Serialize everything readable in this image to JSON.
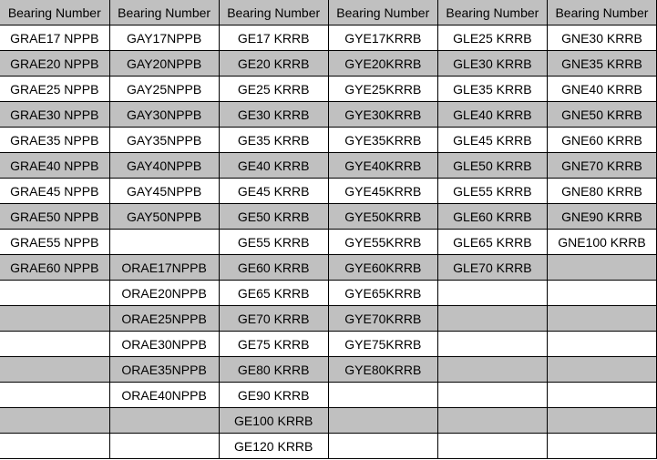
{
  "colors": {
    "header_bg": "#c0c0c0",
    "alt_row_bg": "#c0c0c0",
    "row_bg": "#ffffff",
    "border": "#000000"
  },
  "headers": [
    "Bearing Number",
    "Bearing Number",
    "Bearing Number",
    "Bearing Number",
    "Bearing Number",
    "Bearing Number"
  ],
  "rows": [
    [
      "GRAE17 NPPB",
      "GAY17NPPB",
      "GE17 KRRB",
      "GYE17KRRB",
      "GLE25 KRRB",
      "GNE30 KRRB"
    ],
    [
      "GRAE20 NPPB",
      "GAY20NPPB",
      "GE20 KRRB",
      "GYE20KRRB",
      "GLE30 KRRB",
      "GNE35 KRRB"
    ],
    [
      "GRAE25 NPPB",
      "GAY25NPPB",
      "GE25 KRRB",
      "GYE25KRRB",
      "GLE35 KRRB",
      "GNE40 KRRB"
    ],
    [
      "GRAE30 NPPB",
      "GAY30NPPB",
      "GE30 KRRB",
      "GYE30KRRB",
      "GLE40 KRRB",
      "GNE50 KRRB"
    ],
    [
      "GRAE35 NPPB",
      "GAY35NPPB",
      "GE35 KRRB",
      "GYE35KRRB",
      "GLE45 KRRB",
      "GNE60 KRRB"
    ],
    [
      "GRAE40 NPPB",
      "GAY40NPPB",
      "GE40 KRRB",
      "GYE40KRRB",
      "GLE50 KRRB",
      "GNE70 KRRB"
    ],
    [
      "GRAE45 NPPB",
      "GAY45NPPB",
      "GE45 KRRB",
      "GYE45KRRB",
      "GLE55 KRRB",
      "GNE80 KRRB"
    ],
    [
      "GRAE50 NPPB",
      "GAY50NPPB",
      "GE50 KRRB",
      "GYE50KRRB",
      "GLE60 KRRB",
      "GNE90 KRRB"
    ],
    [
      "GRAE55 NPPB",
      "",
      "GE55 KRRB",
      "GYE55KRRB",
      "GLE65 KRRB",
      "GNE100 KRRB"
    ],
    [
      "GRAE60 NPPB",
      "ORAE17NPPB",
      "GE60 KRRB",
      "GYE60KRRB",
      "GLE70 KRRB",
      ""
    ],
    [
      "",
      "ORAE20NPPB",
      "GE65 KRRB",
      "GYE65KRRB",
      "",
      ""
    ],
    [
      "",
      "ORAE25NPPB",
      "GE70 KRRB",
      "GYE70KRRB",
      "",
      ""
    ],
    [
      "",
      "ORAE30NPPB",
      "GE75 KRRB",
      "GYE75KRRB",
      "",
      ""
    ],
    [
      "",
      "ORAE35NPPB",
      "GE80 KRRB",
      "GYE80KRRB",
      "",
      ""
    ],
    [
      "",
      "ORAE40NPPB",
      "GE90 KRRB",
      "",
      "",
      ""
    ],
    [
      "",
      "",
      "GE100 KRRB",
      "",
      "",
      ""
    ],
    [
      "",
      "",
      "GE120 KRRB",
      "",
      "",
      ""
    ]
  ]
}
